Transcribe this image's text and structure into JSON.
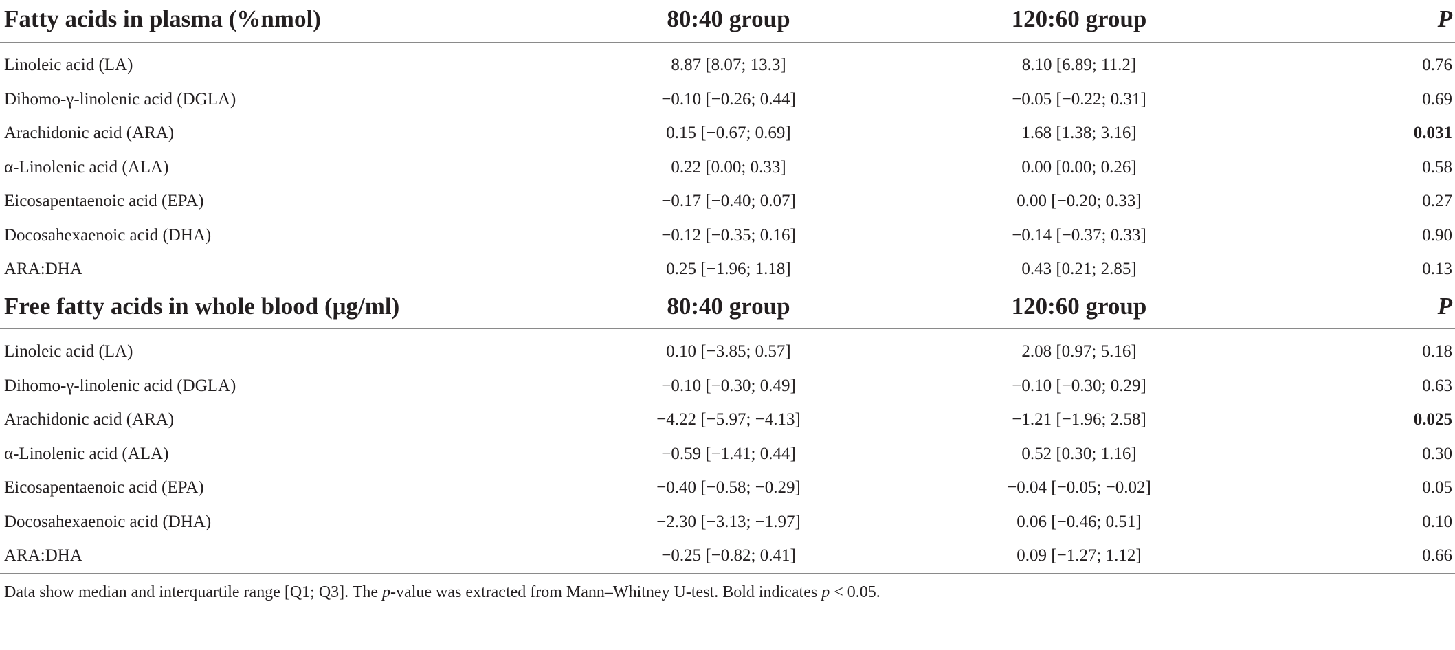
{
  "sections": [
    {
      "header": {
        "name": "Fatty acids in plasma (%nmol)",
        "group1": "80:40 group",
        "group2": "120:60 group",
        "p": "P"
      },
      "rows": [
        {
          "name": "Linoleic acid (LA)",
          "g1": "8.87 [8.07; 13.3]",
          "g2": "8.10 [6.89; 11.2]",
          "p": "0.76",
          "bold": false
        },
        {
          "name": "Dihomo-γ-linolenic acid (DGLA)",
          "g1": "−0.10 [−0.26; 0.44]",
          "g2": "−0.05 [−0.22; 0.31]",
          "p": "0.69",
          "bold": false
        },
        {
          "name": "Arachidonic acid (ARA)",
          "g1": "0.15 [−0.67; 0.69]",
          "g2": "1.68 [1.38; 3.16]",
          "p": "0.031",
          "bold": true
        },
        {
          "name": "α-Linolenic acid (ALA)",
          "g1": "0.22 [0.00; 0.33]",
          "g2": "0.00 [0.00; 0.26]",
          "p": "0.58",
          "bold": false
        },
        {
          "name": "Eicosapentaenoic acid (EPA)",
          "g1": "−0.17 [−0.40; 0.07]",
          "g2": "0.00 [−0.20; 0.33]",
          "p": "0.27",
          "bold": false
        },
        {
          "name": "Docosahexaenoic acid (DHA)",
          "g1": "−0.12 [−0.35; 0.16]",
          "g2": "−0.14 [−0.37; 0.33]",
          "p": "0.90",
          "bold": false
        },
        {
          "name": "ARA:DHA",
          "g1": "0.25 [−1.96; 1.18]",
          "g2": "0.43 [0.21; 2.85]",
          "p": "0.13",
          "bold": false
        }
      ]
    },
    {
      "header": {
        "name": "Free fatty acids in whole blood (μg/ml)",
        "group1": "80:40 group",
        "group2": "120:60 group",
        "p": "P"
      },
      "rows": [
        {
          "name": "Linoleic acid (LA)",
          "g1": "0.10 [−3.85; 0.57]",
          "g2": "2.08 [0.97; 5.16]",
          "p": "0.18",
          "bold": false
        },
        {
          "name": "Dihomo-γ-linolenic acid (DGLA)",
          "g1": "−0.10 [−0.30; 0.49]",
          "g2": "−0.10 [−0.30; 0.29]",
          "p": "0.63",
          "bold": false
        },
        {
          "name": "Arachidonic acid (ARA)",
          "g1": "−4.22 [−5.97; −4.13]",
          "g2": "−1.21 [−1.96; 2.58]",
          "p": "0.025",
          "bold": true
        },
        {
          "name": "α-Linolenic acid (ALA)",
          "g1": "−0.59 [−1.41; 0.44]",
          "g2": "0.52 [0.30; 1.16]",
          "p": "0.30",
          "bold": false
        },
        {
          "name": "Eicosapentaenoic acid (EPA)",
          "g1": "−0.40 [−0.58; −0.29]",
          "g2": "−0.04 [−0.05; −0.02]",
          "p": "0.05",
          "bold": false
        },
        {
          "name": "Docosahexaenoic acid (DHA)",
          "g1": "−2.30 [−3.13; −1.97]",
          "g2": "0.06 [−0.46; 0.51]",
          "p": "0.10",
          "bold": false
        },
        {
          "name": "ARA:DHA",
          "g1": "−0.25 [−0.82; 0.41]",
          "g2": "0.09 [−1.27; 1.12]",
          "p": "0.66",
          "bold": false
        }
      ]
    }
  ],
  "footnote": {
    "part1": "Data show median and interquartile range [Q1; Q3]. The ",
    "italic1": "p",
    "part2": "-value was extracted from Mann–Whitney U-test. Bold indicates ",
    "italic2": "p",
    "part3": " < 0.05."
  }
}
